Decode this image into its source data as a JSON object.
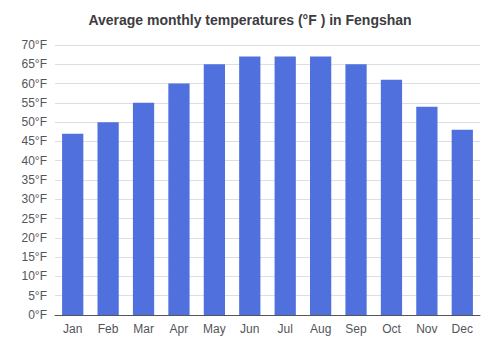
{
  "chart_data": {
    "type": "bar",
    "title": "Average monthly temperatures (°F ) in Fengshan",
    "categories": [
      "Jan",
      "Feb",
      "Mar",
      "Apr",
      "May",
      "Jun",
      "Jul",
      "Aug",
      "Sep",
      "Oct",
      "Nov",
      "Dec"
    ],
    "values": [
      47,
      50,
      55,
      60,
      65,
      67,
      67,
      67,
      65,
      61,
      54,
      48
    ],
    "ylim": [
      0,
      70
    ],
    "yticks": [
      {
        "value": 0,
        "label": "0°F"
      },
      {
        "value": 5,
        "label": "5°F"
      },
      {
        "value": 10,
        "label": "10°F"
      },
      {
        "value": 15,
        "label": "15°F"
      },
      {
        "value": 20,
        "label": "20°F"
      },
      {
        "value": 25,
        "label": "25°F"
      },
      {
        "value": 30,
        "label": "30°F"
      },
      {
        "value": 35,
        "label": "35°F"
      },
      {
        "value": 40,
        "label": "40°F"
      },
      {
        "value": 45,
        "label": "45°F"
      },
      {
        "value": 50,
        "label": "50°F"
      },
      {
        "value": 55,
        "label": "55°F"
      },
      {
        "value": 60,
        "label": "60°F"
      },
      {
        "value": 65,
        "label": "65°F"
      },
      {
        "value": 70,
        "label": "70°F"
      }
    ],
    "grid": true
  }
}
